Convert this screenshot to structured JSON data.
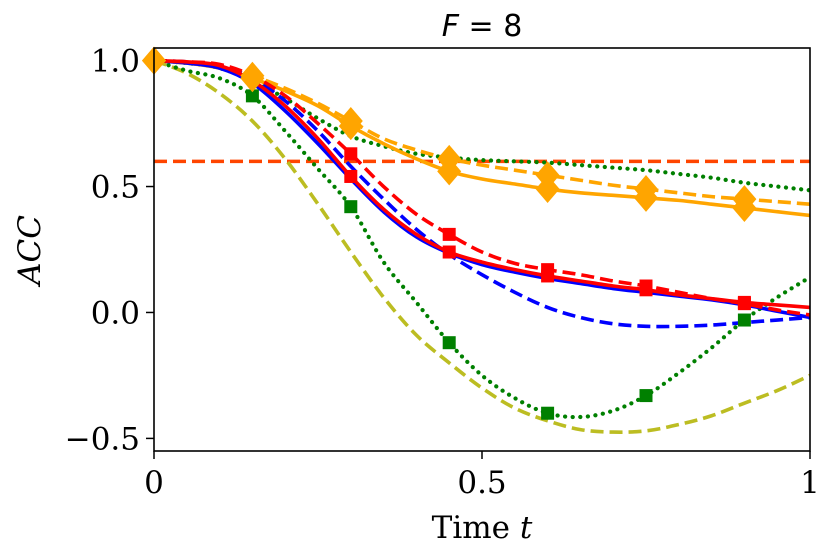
{
  "chart_data": {
    "type": "line",
    "title": "F = 8",
    "title_parts": {
      "var": "F",
      "rest": " = 8"
    },
    "xlabel": "Time t",
    "xlabel_parts": {
      "text": "Time ",
      "var": "t"
    },
    "ylabel": "ACC",
    "xlim": [
      0,
      1
    ],
    "ylim": [
      -0.55,
      1.05
    ],
    "xticks": [
      {
        "value": 0,
        "label": "0"
      },
      {
        "value": 0.5,
        "label": "0.5"
      },
      {
        "value": 1,
        "label": "1"
      }
    ],
    "yticks": [
      {
        "value": -0.5,
        "label": "−0.5"
      },
      {
        "value": 0.0,
        "label": "0.0"
      },
      {
        "value": 0.5,
        "label": "0.5"
      },
      {
        "value": 1.0,
        "label": "1.0"
      }
    ],
    "hline": {
      "y": 0.6,
      "color": "#ff4500",
      "dash": "dashed"
    },
    "series": [
      {
        "name": "orange solid",
        "color": "#ffa500",
        "dash": "solid",
        "marker": "diamond",
        "x": [
          0,
          0.05,
          0.1,
          0.15,
          0.2,
          0.25,
          0.3,
          0.35,
          0.4,
          0.45,
          0.5,
          0.55,
          0.6,
          0.65,
          0.7,
          0.75,
          0.8,
          0.85,
          0.9,
          0.95,
          1.0
        ],
        "y": [
          1.0,
          0.99,
          0.97,
          0.93,
          0.88,
          0.82,
          0.74,
          0.67,
          0.61,
          0.56,
          0.53,
          0.51,
          0.49,
          0.475,
          0.465,
          0.455,
          0.445,
          0.43,
          0.415,
          0.4,
          0.385
        ],
        "marker_x": [
          0,
          0.15,
          0.3,
          0.45,
          0.6,
          0.75,
          0.9
        ],
        "marker_y": [
          1.0,
          0.93,
          0.74,
          0.56,
          0.49,
          0.455,
          0.415
        ]
      },
      {
        "name": "orange dashed",
        "color": "#ffa500",
        "dash": "dashed",
        "marker": "diamond",
        "x": [
          0,
          0.05,
          0.1,
          0.15,
          0.2,
          0.25,
          0.3,
          0.35,
          0.4,
          0.45,
          0.5,
          0.55,
          0.6,
          0.65,
          0.7,
          0.75,
          0.8,
          0.85,
          0.9,
          0.95,
          1.0
        ],
        "y": [
          1.0,
          0.99,
          0.975,
          0.94,
          0.89,
          0.83,
          0.76,
          0.69,
          0.645,
          0.61,
          0.585,
          0.565,
          0.545,
          0.525,
          0.505,
          0.49,
          0.475,
          0.46,
          0.45,
          0.44,
          0.43
        ],
        "marker_x": [
          0,
          0.15,
          0.3,
          0.45,
          0.6,
          0.75,
          0.9
        ],
        "marker_y": [
          1.0,
          0.94,
          0.76,
          0.61,
          0.545,
          0.49,
          0.45
        ]
      },
      {
        "name": "red solid",
        "color": "#ff0000",
        "dash": "solid",
        "marker": "square",
        "x": [
          0,
          0.05,
          0.1,
          0.15,
          0.2,
          0.25,
          0.3,
          0.35,
          0.4,
          0.45,
          0.5,
          0.55,
          0.6,
          0.65,
          0.7,
          0.75,
          0.8,
          0.85,
          0.9,
          0.95,
          1.0
        ],
        "y": [
          1.0,
          0.995,
          0.98,
          0.92,
          0.82,
          0.69,
          0.54,
          0.41,
          0.31,
          0.24,
          0.2,
          0.17,
          0.145,
          0.125,
          0.105,
          0.09,
          0.07,
          0.055,
          0.04,
          0.03,
          0.02
        ],
        "marker_x": [
          0.3,
          0.45,
          0.6,
          0.75,
          0.9
        ],
        "marker_y": [
          0.54,
          0.24,
          0.145,
          0.09,
          0.04
        ]
      },
      {
        "name": "red dashed",
        "color": "#ff0000",
        "dash": "dashed",
        "marker": "square",
        "x": [
          0,
          0.05,
          0.1,
          0.15,
          0.2,
          0.25,
          0.3,
          0.35,
          0.4,
          0.45,
          0.5,
          0.55,
          0.6,
          0.65,
          0.7,
          0.75,
          0.8,
          0.85,
          0.9,
          0.95,
          1.0
        ],
        "y": [
          1.0,
          0.995,
          0.985,
          0.94,
          0.86,
          0.75,
          0.63,
          0.5,
          0.39,
          0.31,
          0.24,
          0.195,
          0.17,
          0.15,
          0.125,
          0.105,
          0.08,
          0.055,
          0.035,
          0.01,
          -0.01
        ],
        "marker_x": [
          0.3,
          0.45,
          0.6,
          0.75,
          0.9
        ],
        "marker_y": [
          0.63,
          0.31,
          0.17,
          0.105,
          0.035
        ]
      },
      {
        "name": "blue solid",
        "color": "#0000ff",
        "dash": "solid",
        "marker": "none",
        "x": [
          0,
          0.05,
          0.1,
          0.15,
          0.2,
          0.25,
          0.3,
          0.35,
          0.4,
          0.45,
          0.5,
          0.55,
          0.6,
          0.65,
          0.7,
          0.75,
          0.8,
          0.85,
          0.9,
          0.95,
          1.0
        ],
        "y": [
          1.0,
          0.99,
          0.97,
          0.91,
          0.8,
          0.67,
          0.53,
          0.4,
          0.3,
          0.235,
          0.19,
          0.16,
          0.135,
          0.115,
          0.095,
          0.08,
          0.065,
          0.05,
          0.03,
          0.005,
          -0.02
        ],
        "marker_x": [],
        "marker_y": []
      },
      {
        "name": "blue dashed",
        "color": "#0000ff",
        "dash": "dashed",
        "marker": "none",
        "x": [
          0,
          0.05,
          0.1,
          0.15,
          0.2,
          0.25,
          0.3,
          0.35,
          0.4,
          0.45,
          0.5,
          0.55,
          0.6,
          0.65,
          0.7,
          0.75,
          0.8,
          0.85,
          0.9,
          0.95,
          1.0
        ],
        "y": [
          1.0,
          0.995,
          0.98,
          0.93,
          0.84,
          0.72,
          0.58,
          0.45,
          0.33,
          0.23,
          0.15,
          0.08,
          0.02,
          -0.02,
          -0.045,
          -0.055,
          -0.055,
          -0.05,
          -0.04,
          -0.03,
          -0.02
        ],
        "marker_x": [],
        "marker_y": []
      },
      {
        "name": "green dotted (upper)",
        "color": "#008000",
        "dash": "dotted",
        "marker": "none",
        "x": [
          0,
          0.05,
          0.1,
          0.15,
          0.2,
          0.25,
          0.3,
          0.35,
          0.4,
          0.45,
          0.5,
          0.55,
          0.6,
          0.65,
          0.7,
          0.75,
          0.8,
          0.85,
          0.9,
          0.95,
          1.0
        ],
        "y": [
          1.0,
          0.99,
          0.97,
          0.92,
          0.85,
          0.77,
          0.7,
          0.66,
          0.63,
          0.615,
          0.605,
          0.6,
          0.595,
          0.585,
          0.575,
          0.565,
          0.55,
          0.535,
          0.515,
          0.5,
          0.485
        ],
        "marker_x": [],
        "marker_y": []
      },
      {
        "name": "green dotted (lower)",
        "color": "#008000",
        "dash": "dotted",
        "marker": "square",
        "x": [
          0,
          0.05,
          0.1,
          0.15,
          0.2,
          0.25,
          0.3,
          0.35,
          0.4,
          0.45,
          0.5,
          0.55,
          0.6,
          0.65,
          0.7,
          0.75,
          0.8,
          0.85,
          0.9,
          0.95,
          1.0
        ],
        "y": [
          1.0,
          0.96,
          0.93,
          0.86,
          0.72,
          0.57,
          0.42,
          0.2,
          0.04,
          -0.12,
          -0.25,
          -0.34,
          -0.4,
          -0.415,
          -0.39,
          -0.33,
          -0.24,
          -0.14,
          -0.03,
          0.06,
          0.14
        ],
        "marker_x": [
          0.15,
          0.3,
          0.45,
          0.6,
          0.75,
          0.9
        ],
        "marker_y": [
          0.86,
          0.42,
          -0.12,
          -0.4,
          -0.33,
          -0.03
        ]
      },
      {
        "name": "olive dashed",
        "color": "#bcbd22",
        "dash": "dashed",
        "marker": "none",
        "x": [
          0,
          0.05,
          0.1,
          0.15,
          0.2,
          0.25,
          0.3,
          0.35,
          0.4,
          0.45,
          0.5,
          0.55,
          0.6,
          0.65,
          0.7,
          0.75,
          0.8,
          0.85,
          0.9,
          0.95,
          1.0
        ],
        "y": [
          1.0,
          0.95,
          0.87,
          0.76,
          0.61,
          0.43,
          0.24,
          0.06,
          -0.09,
          -0.2,
          -0.3,
          -0.38,
          -0.43,
          -0.465,
          -0.475,
          -0.47,
          -0.445,
          -0.41,
          -0.36,
          -0.31,
          -0.25
        ],
        "marker_x": [],
        "marker_y": []
      }
    ]
  }
}
